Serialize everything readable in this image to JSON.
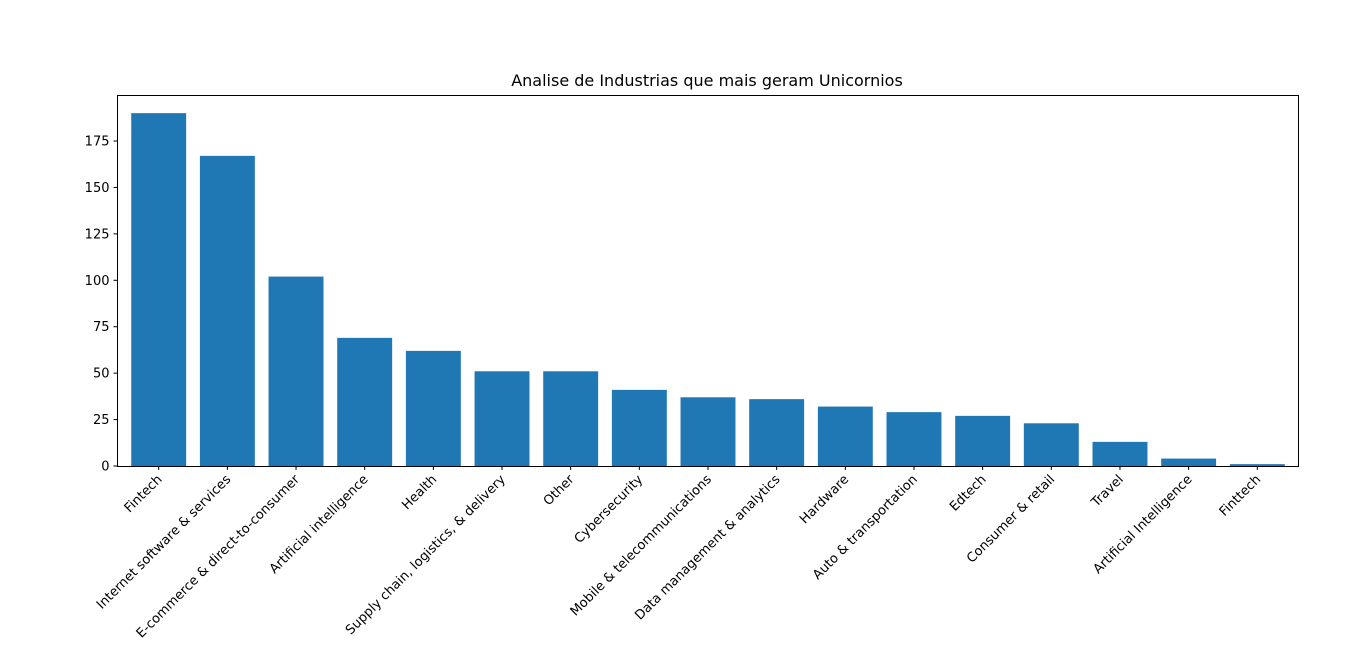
{
  "chart_data": {
    "type": "bar",
    "title": "Analise de Industrias que mais geram Unicornios",
    "xlabel": "",
    "ylabel": "",
    "categories": [
      "Fintech",
      "Internet software & services",
      "E-commerce & direct-to-consumer",
      "Artificial intelligence",
      "Health",
      "Supply chain, logistics, & delivery",
      "Other",
      "Cybersecurity",
      "Mobile & telecommunications",
      "Data management & analytics",
      "Hardware",
      "Auto & transportation",
      "Edtech",
      "Consumer & retail",
      "Travel",
      "Artificial Intelligence",
      "Finttech"
    ],
    "values": [
      190,
      167,
      102,
      69,
      62,
      51,
      51,
      41,
      37,
      36,
      32,
      29,
      27,
      23,
      13,
      4,
      1
    ],
    "yticks": [
      0,
      25,
      50,
      75,
      100,
      125,
      150,
      175
    ],
    "ylim": [
      0,
      199.5
    ],
    "grid": false,
    "color": "#1f77b4"
  }
}
